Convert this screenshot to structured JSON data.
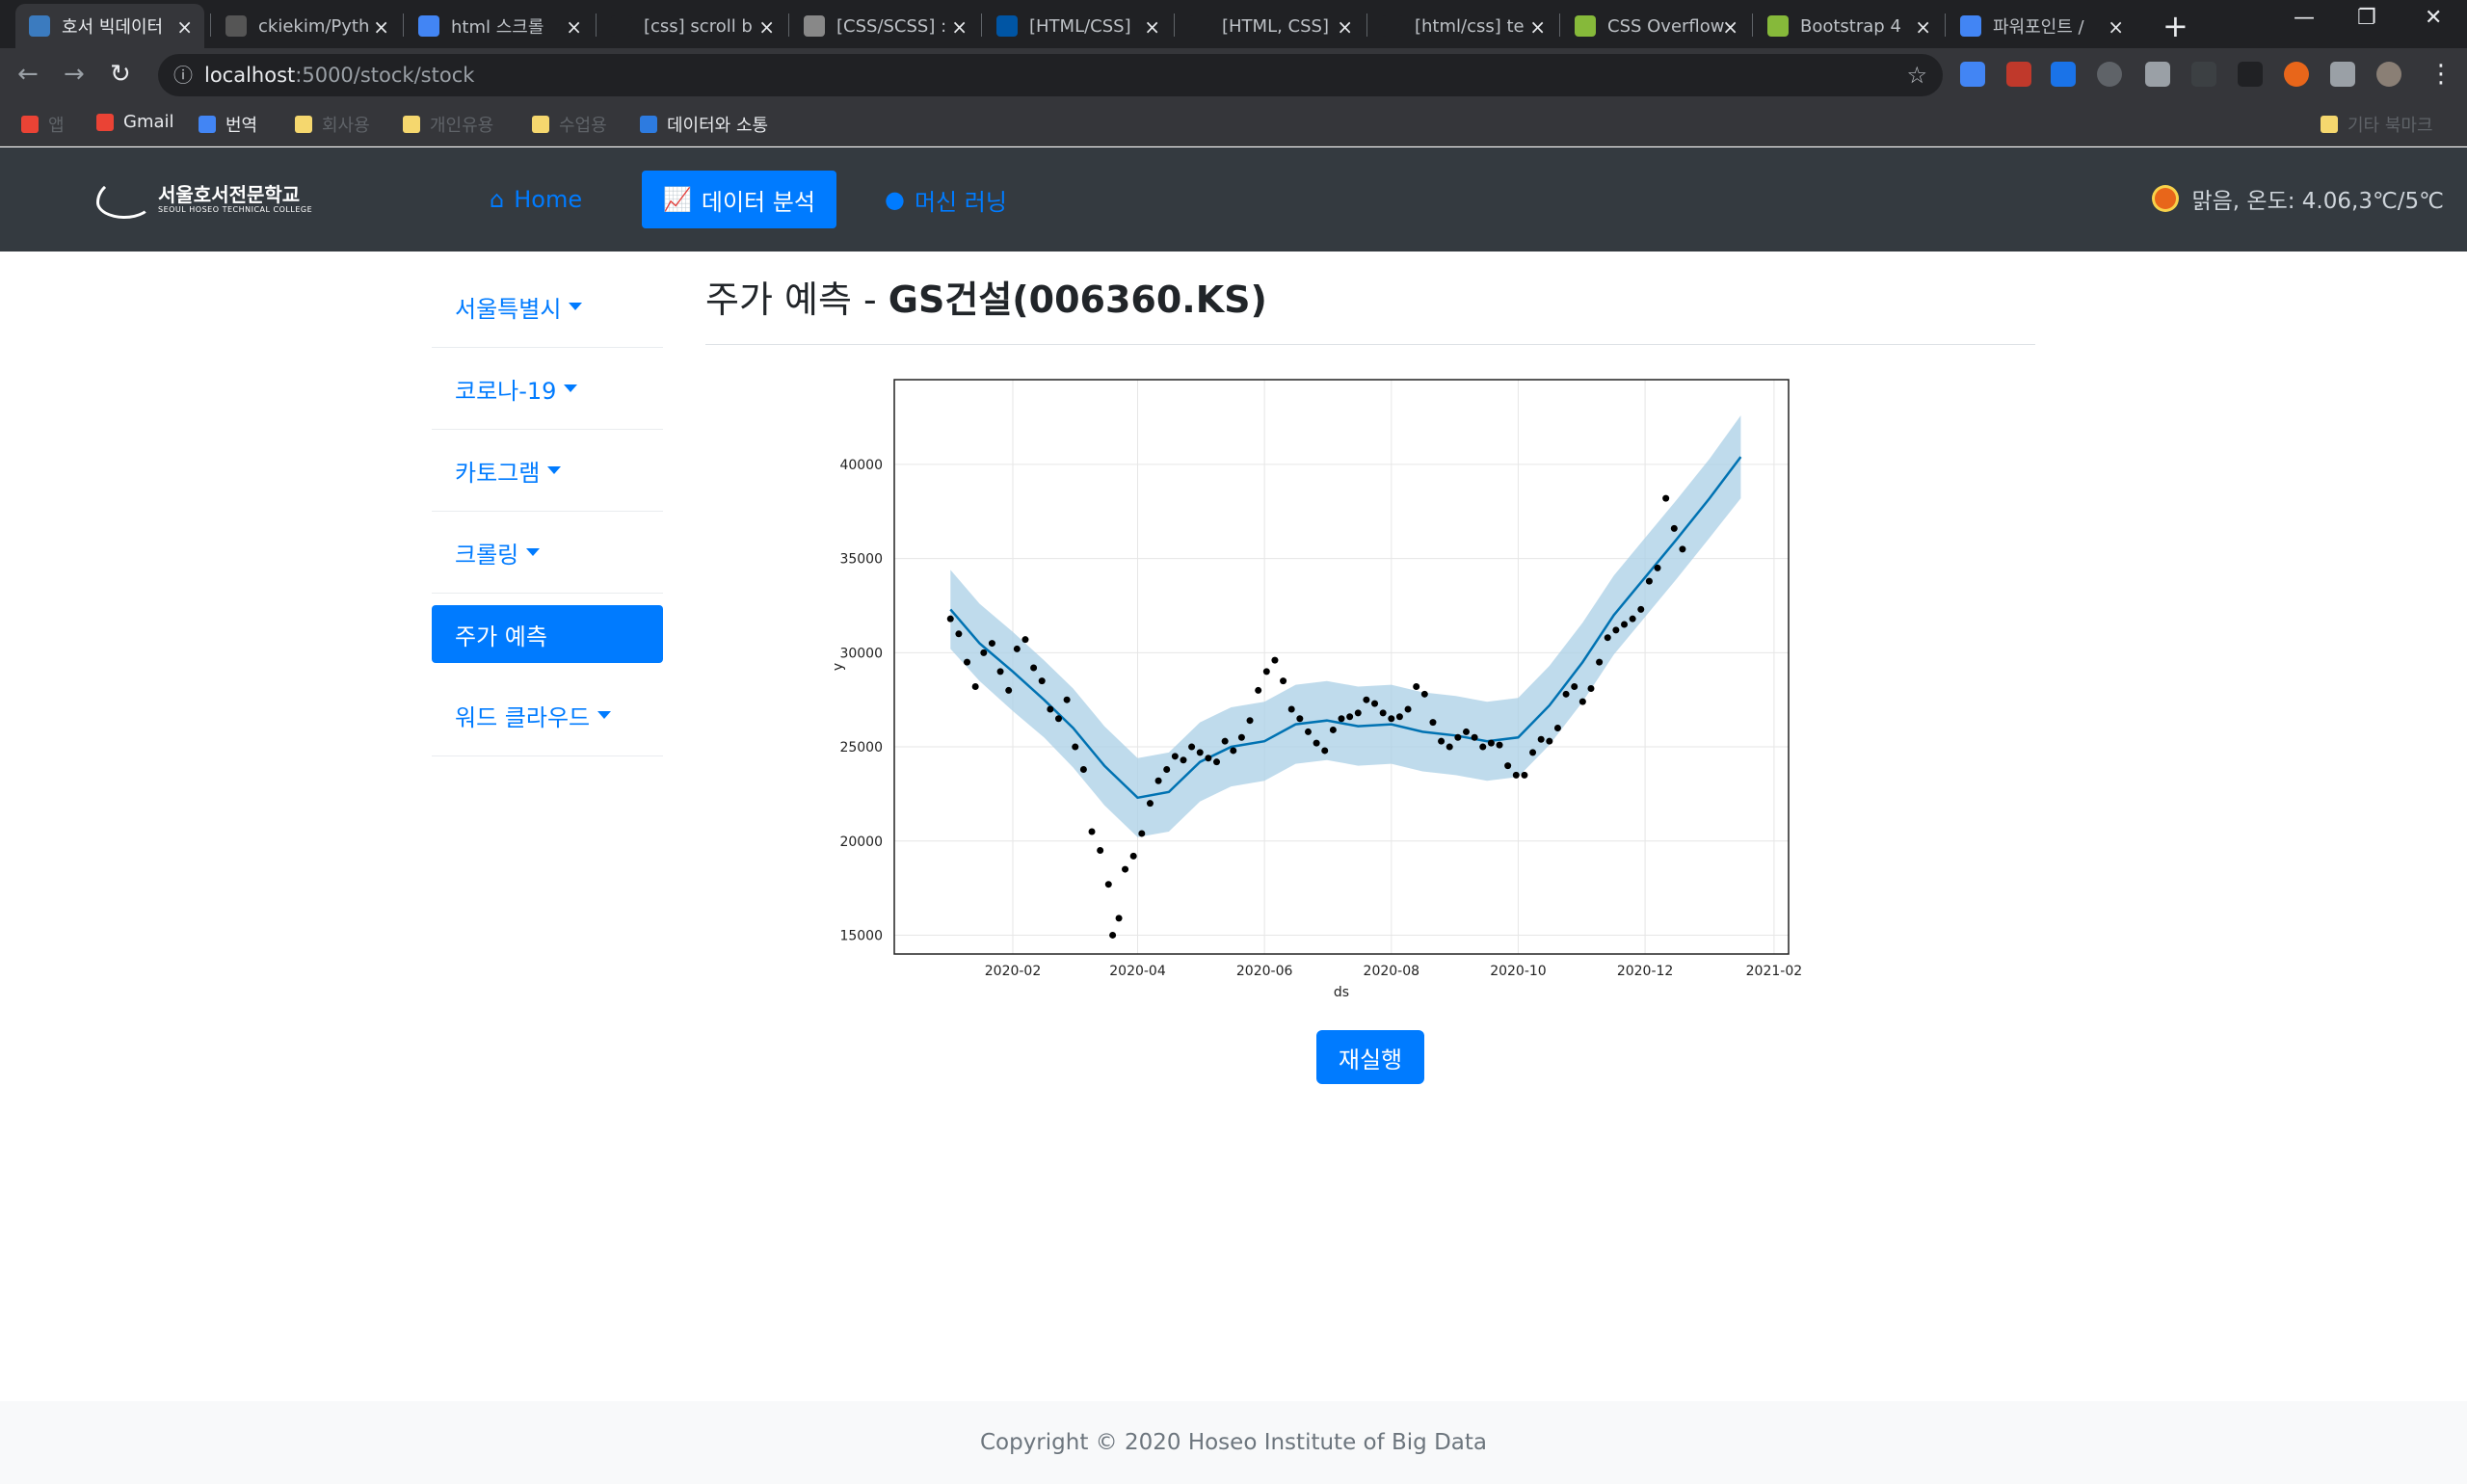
{
  "browser": {
    "tabs": [
      {
        "title": "호서 빅데이터",
        "color": "#3b7bbf",
        "active": true
      },
      {
        "title": "ckiekim/Pyth",
        "color": "#555555",
        "active": false
      },
      {
        "title": "html 스크롤",
        "color": "#4285f4",
        "active": false
      },
      {
        "title": "[css] scroll b",
        "color": "#202124",
        "active": false
      },
      {
        "title": "[CSS/SCSS] :",
        "color": "#888888",
        "active": false
      },
      {
        "title": "[HTML/CSS]",
        "color": "#0055a4",
        "active": false
      },
      {
        "title": "[HTML, CSS]",
        "color": "#202124",
        "active": false
      },
      {
        "title": "[html/css] te",
        "color": "#202124",
        "active": false
      },
      {
        "title": "CSS Overflow",
        "color": "#86b93a",
        "active": false
      },
      {
        "title": "Bootstrap 4",
        "color": "#86b93a",
        "active": false
      },
      {
        "title": "파워포인트 /",
        "color": "#4285f4",
        "active": false
      }
    ],
    "url_host": "localhost",
    "url_path": ":5000/stock/stock",
    "bookmarks": [
      {
        "label": "앱",
        "dim": true,
        "color": "#ea4335"
      },
      {
        "label": "Gmail",
        "dim": false,
        "color": "#ea4335"
      },
      {
        "label": "번역",
        "dim": false,
        "color": "#4285f4"
      },
      {
        "label": "회사용",
        "dim": true,
        "color": "#f5d76e"
      },
      {
        "label": "개인유용",
        "dim": true,
        "color": "#f5d76e"
      },
      {
        "label": "수업용",
        "dim": true,
        "color": "#f5d76e"
      },
      {
        "label": "데이터와 소통",
        "dim": false,
        "color": "#2d7be0"
      }
    ],
    "other_bookmarks": "기타 북마크"
  },
  "navbar": {
    "logo_name": "서울호서전문학교",
    "logo_sub": "SEOUL HOSEO TECHNICAL COLLEGE",
    "links": [
      {
        "label": "Home",
        "icon": "home-icon",
        "glyph": "⌂",
        "active": false
      },
      {
        "label": "데이터 분석",
        "icon": "chart-line-icon",
        "glyph": "📈",
        "active": true
      },
      {
        "label": "머신 러닝",
        "icon": "brain-icon",
        "glyph": "●",
        "active": false
      }
    ],
    "weather": "맑음, 온도: 4.06,3℃/5℃"
  },
  "sidebar": {
    "items": [
      {
        "label": "서울특별시",
        "dropdown": true,
        "active": false
      },
      {
        "label": "코로나-19",
        "dropdown": true,
        "active": false
      },
      {
        "label": "카토그램",
        "dropdown": true,
        "active": false
      },
      {
        "label": "크롤링",
        "dropdown": true,
        "active": false
      },
      {
        "label": "주가 예측",
        "dropdown": false,
        "active": true
      },
      {
        "label": "워드 클라우드",
        "dropdown": true,
        "active": false
      }
    ]
  },
  "main": {
    "title_prefix": "주가 예측 - ",
    "title_strong": "GS건설(006360.KS)",
    "rerun_label": "재실행"
  },
  "footer": {
    "text": "Copyright © 2020 Hoseo Institute of Big Data"
  },
  "chart_data": {
    "type": "line",
    "xlabel": "ds",
    "ylabel": "y",
    "xticks": [
      "2020-02",
      "2020-04",
      "2020-06",
      "2020-08",
      "2020-10",
      "2020-12",
      "2021-02"
    ],
    "yticks": [
      15000,
      20000,
      25000,
      30000,
      35000,
      40000
    ],
    "xlim": [
      "2019-12-06",
      "2021-02-08"
    ],
    "ylim": [
      14000,
      44500
    ],
    "grid": true,
    "colors": {
      "line": "#0072b2",
      "band": "#a9cfe6",
      "points": "#000000"
    },
    "forecast": {
      "x": [
        "2020-01-02",
        "2020-01-16",
        "2020-02-01",
        "2020-02-16",
        "2020-03-01",
        "2020-03-16",
        "2020-04-01",
        "2020-04-16",
        "2020-05-01",
        "2020-05-16",
        "2020-06-01",
        "2020-06-16",
        "2020-07-01",
        "2020-07-16",
        "2020-08-01",
        "2020-08-16",
        "2020-09-01",
        "2020-09-16",
        "2020-10-01",
        "2020-10-16",
        "2020-11-01",
        "2020-11-16",
        "2020-12-01",
        "2020-12-16",
        "2021-01-01",
        "2021-01-16"
      ],
      "yhat": [
        32300,
        30500,
        29000,
        27500,
        26000,
        24000,
        22300,
        22600,
        24200,
        25000,
        25300,
        26200,
        26400,
        26100,
        26200,
        25800,
        25600,
        25300,
        25500,
        27200,
        29500,
        32000,
        34000,
        36000,
        38200,
        40400
      ],
      "lower": [
        30200,
        28500,
        26900,
        25500,
        23900,
        21900,
        20200,
        20500,
        22100,
        22900,
        23200,
        24100,
        24300,
        24000,
        24100,
        23700,
        23500,
        23200,
        23400,
        25100,
        27400,
        29900,
        31900,
        33900,
        36100,
        38200
      ],
      "upper": [
        34400,
        32600,
        31100,
        29600,
        28100,
        26100,
        24400,
        24700,
        26300,
        27100,
        27400,
        28300,
        28500,
        28200,
        28300,
        27900,
        27700,
        27400,
        27600,
        29300,
        31600,
        34100,
        36100,
        38100,
        40300,
        42600
      ]
    },
    "actual": {
      "x": [
        "2020-01-02",
        "2020-01-06",
        "2020-01-10",
        "2020-01-14",
        "2020-01-18",
        "2020-01-22",
        "2020-01-26",
        "2020-01-30",
        "2020-02-03",
        "2020-02-07",
        "2020-02-11",
        "2020-02-15",
        "2020-02-19",
        "2020-02-23",
        "2020-02-27",
        "2020-03-02",
        "2020-03-06",
        "2020-03-10",
        "2020-03-14",
        "2020-03-18",
        "2020-03-20",
        "2020-03-23",
        "2020-03-26",
        "2020-03-30",
        "2020-04-03",
        "2020-04-07",
        "2020-04-11",
        "2020-04-15",
        "2020-04-19",
        "2020-04-23",
        "2020-04-27",
        "2020-05-01",
        "2020-05-05",
        "2020-05-09",
        "2020-05-13",
        "2020-05-17",
        "2020-05-21",
        "2020-05-25",
        "2020-05-29",
        "2020-06-02",
        "2020-06-06",
        "2020-06-10",
        "2020-06-14",
        "2020-06-18",
        "2020-06-22",
        "2020-06-26",
        "2020-06-30",
        "2020-07-04",
        "2020-07-08",
        "2020-07-12",
        "2020-07-16",
        "2020-07-20",
        "2020-07-24",
        "2020-07-28",
        "2020-08-01",
        "2020-08-05",
        "2020-08-09",
        "2020-08-13",
        "2020-08-17",
        "2020-08-21",
        "2020-08-25",
        "2020-08-29",
        "2020-09-02",
        "2020-09-06",
        "2020-09-10",
        "2020-09-14",
        "2020-09-18",
        "2020-09-22",
        "2020-09-26",
        "2020-09-30",
        "2020-10-04",
        "2020-10-08",
        "2020-10-12",
        "2020-10-16",
        "2020-10-20",
        "2020-10-24",
        "2020-10-28",
        "2020-11-01",
        "2020-11-05",
        "2020-11-09",
        "2020-11-13",
        "2020-11-17",
        "2020-11-21",
        "2020-11-25",
        "2020-11-29",
        "2020-12-03",
        "2020-12-07",
        "2020-12-11",
        "2020-12-15",
        "2020-12-19"
      ],
      "y": [
        31800,
        31000,
        29500,
        28200,
        30000,
        30500,
        29000,
        28000,
        30200,
        30700,
        29200,
        28500,
        27000,
        26500,
        27500,
        25000,
        23800,
        20500,
        19500,
        17700,
        15000,
        15900,
        18500,
        19200,
        20400,
        22000,
        23200,
        23800,
        24500,
        24300,
        25000,
        24700,
        24400,
        24200,
        25300,
        24800,
        25500,
        26400,
        28000,
        29000,
        29600,
        28500,
        27000,
        26500,
        25800,
        25200,
        24800,
        25900,
        26500,
        26600,
        26800,
        27500,
        27300,
        26800,
        26500,
        26600,
        27000,
        28200,
        27800,
        26300,
        25300,
        25000,
        25500,
        25800,
        25500,
        25000,
        25200,
        25100,
        24000,
        23500,
        23500,
        24700,
        25400,
        25300,
        26000,
        27800,
        28200,
        27400,
        28100,
        29500,
        30800,
        31200,
        31500,
        31800,
        32300,
        33800,
        34500,
        38200,
        36600,
        35500
      ]
    }
  }
}
